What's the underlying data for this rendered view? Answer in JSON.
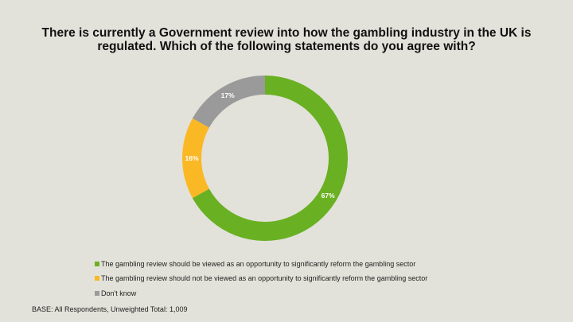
{
  "title": "There is currently a Government review into how the gambling industry in the UK is regulated. Which of the following statements do you agree with?",
  "footnote": "BASE: All Respondents, Unweighted Total: 1,009",
  "chart_data": {
    "type": "pie",
    "style": "donut",
    "categories": [
      "The gambling review should be viewed as an opportunity to significantly reform the gambling sector",
      "The gambling review should not be viewed as an opportunity to significantly reform the gambling sector",
      "Don't know"
    ],
    "values": [
      67,
      16,
      17
    ],
    "labels": [
      "67%",
      "16%",
      "17%"
    ],
    "colors": [
      "#6ab023",
      "#fbb825",
      "#9a9a9a"
    ],
    "legend": "bottom-left"
  }
}
